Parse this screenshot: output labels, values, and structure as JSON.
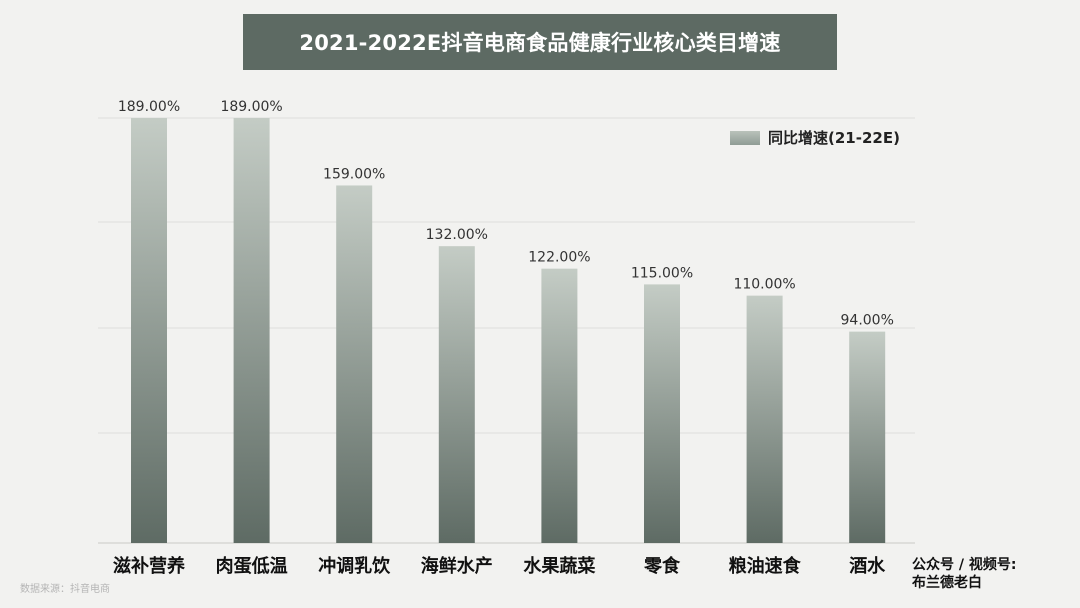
{
  "title": "2021-2022E抖音电商食品健康行业核心类目增速",
  "legend": {
    "label": "同比增速(21-22E)",
    "swatch_color": "#a7b1aa"
  },
  "footer": {
    "line1": "公众号 / 视频号:",
    "line2": "布兰德老白"
  },
  "source": "数据来源：抖音电商",
  "colors": {
    "title_bg": "#5d6a63",
    "bar_top": "#c4ccc5",
    "bar_bottom": "#5e6b64"
  },
  "chart_data": {
    "type": "bar",
    "title": "2021-2022E抖音电商食品健康行业核心类目增速",
    "categories": [
      "滋补营养",
      "肉蛋低温",
      "冲调乳饮",
      "海鲜水产",
      "水果蔬菜",
      "零食",
      "粮油速食",
      "酒水"
    ],
    "series": [
      {
        "name": "同比增速(21-22E)",
        "values": [
          189.0,
          189.0,
          159.0,
          132.0,
          122.0,
          115.0,
          110.0,
          94.0
        ],
        "labels": [
          "189.00%",
          "189.00%",
          "159.00%",
          "132.00%",
          "122.00%",
          "115.00%",
          "110.00%",
          "94.00%"
        ]
      }
    ],
    "xlabel": "",
    "ylabel": "",
    "ylim": [
      0,
      200
    ],
    "grid": true,
    "legend_position": "top-right"
  }
}
